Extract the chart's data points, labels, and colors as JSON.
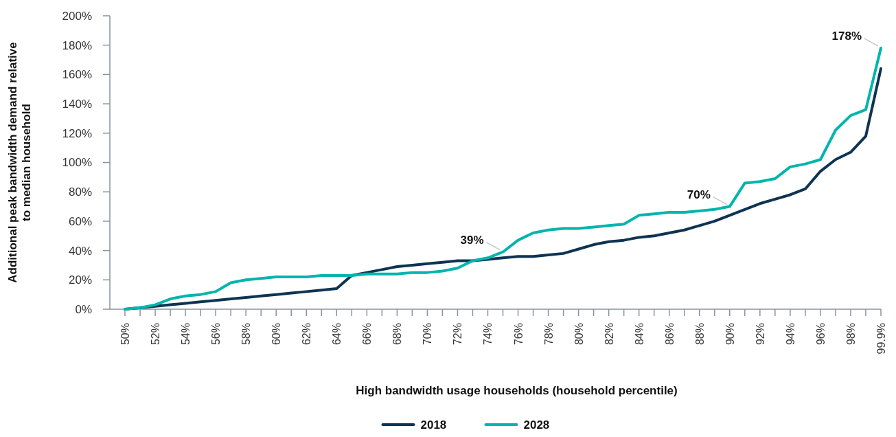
{
  "chart_data": {
    "type": "line",
    "xlabel": "High bandwidth usage households (household percentile)",
    "ylabel": "Additional peak bandwidth demand relative to median household",
    "categories": [
      "50%",
      null,
      "52%",
      null,
      "54%",
      null,
      "56%",
      null,
      "58%",
      null,
      "60%",
      null,
      "62%",
      null,
      "64%",
      null,
      "66%",
      null,
      "68%",
      null,
      "70%",
      null,
      "72%",
      null,
      "74%",
      null,
      "76%",
      null,
      "78%",
      null,
      "80%",
      null,
      "82%",
      null,
      "84%",
      null,
      "86%",
      null,
      "88%",
      null,
      "90%",
      null,
      "92%",
      null,
      "94%",
      null,
      "96%",
      null,
      "98%",
      null,
      "99.9%"
    ],
    "series": [
      {
        "name": "2018",
        "color": "#0e3452",
        "values": [
          0,
          1,
          2,
          3,
          4,
          5,
          6,
          7,
          8,
          9,
          10,
          11,
          12,
          13,
          14,
          23,
          25,
          27,
          29,
          30,
          31,
          32,
          33,
          33,
          34,
          35,
          36,
          36,
          37,
          38,
          41,
          44,
          46,
          47,
          49,
          50,
          52,
          54,
          57,
          60,
          64,
          68,
          72,
          75,
          78,
          82,
          94,
          102,
          107,
          118,
          164
        ]
      },
      {
        "name": "2028",
        "color": "#00b5ad",
        "values": [
          0,
          1,
          3,
          7,
          9,
          10,
          12,
          18,
          20,
          21,
          22,
          22,
          22,
          23,
          23,
          23,
          24,
          24,
          24,
          25,
          25,
          26,
          28,
          33,
          35,
          39,
          47,
          52,
          54,
          55,
          55,
          56,
          57,
          58,
          64,
          65,
          66,
          66,
          67,
          68,
          70,
          86,
          87,
          89,
          97,
          99,
          102,
          122,
          132,
          136,
          178
        ],
        "value_labels": [
          null,
          null,
          null,
          null,
          null,
          null,
          null,
          null,
          null,
          null,
          null,
          null,
          null,
          null,
          null,
          null,
          null,
          null,
          null,
          null,
          null,
          null,
          null,
          null,
          null,
          "39%",
          null,
          null,
          null,
          null,
          null,
          null,
          null,
          null,
          null,
          null,
          null,
          null,
          null,
          null,
          "70%",
          null,
          null,
          null,
          null,
          null,
          null,
          null,
          null,
          null,
          "178%"
        ]
      }
    ],
    "ylim": [
      0,
      200
    ],
    "yticks": [
      {
        "value": 0,
        "label": "0%"
      },
      {
        "value": 20,
        "label": "20%"
      },
      {
        "value": 40,
        "label": "40%"
      },
      {
        "value": 60,
        "label": "60%"
      },
      {
        "value": 80,
        "label": "80%"
      },
      {
        "value": 100,
        "label": "100%"
      },
      {
        "value": 120,
        "label": "120%"
      },
      {
        "value": 140,
        "label": "140%"
      },
      {
        "value": 160,
        "label": "160%"
      },
      {
        "value": 180,
        "label": "180%"
      },
      {
        "value": 200,
        "label": "200%"
      }
    ],
    "grid": false,
    "legend": "bottom",
    "marker": "none",
    "line_style": "solid"
  }
}
